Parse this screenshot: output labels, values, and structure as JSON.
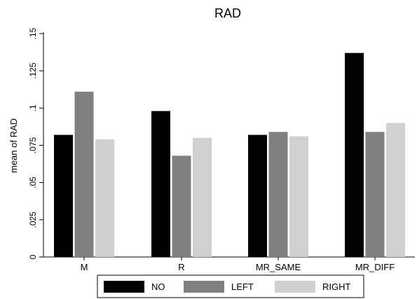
{
  "chart_data": {
    "type": "bar",
    "title": "RAD",
    "ylabel": "mean of RAD",
    "xlabel": "",
    "categories": [
      "M",
      "R",
      "MR_SAME",
      "MR_DIFF"
    ],
    "ylim": [
      0,
      0.15
    ],
    "yticks": [
      0,
      0.025,
      0.05,
      0.075,
      0.1,
      0.125,
      0.15
    ],
    "ytick_labels": [
      "0",
      ".025",
      ".05",
      ".075",
      ".1",
      ".125",
      ".15"
    ],
    "grid": false,
    "legend_position": "bottom",
    "series": [
      {
        "name": "NO",
        "color": "#000000",
        "values": [
          0.082,
          0.098,
          0.082,
          0.137
        ]
      },
      {
        "name": "LEFT",
        "color": "#808080",
        "values": [
          0.111,
          0.068,
          0.084,
          0.084
        ]
      },
      {
        "name": "RIGHT",
        "color": "#d0d0d0",
        "values": [
          0.079,
          0.08,
          0.081,
          0.09
        ]
      }
    ]
  }
}
